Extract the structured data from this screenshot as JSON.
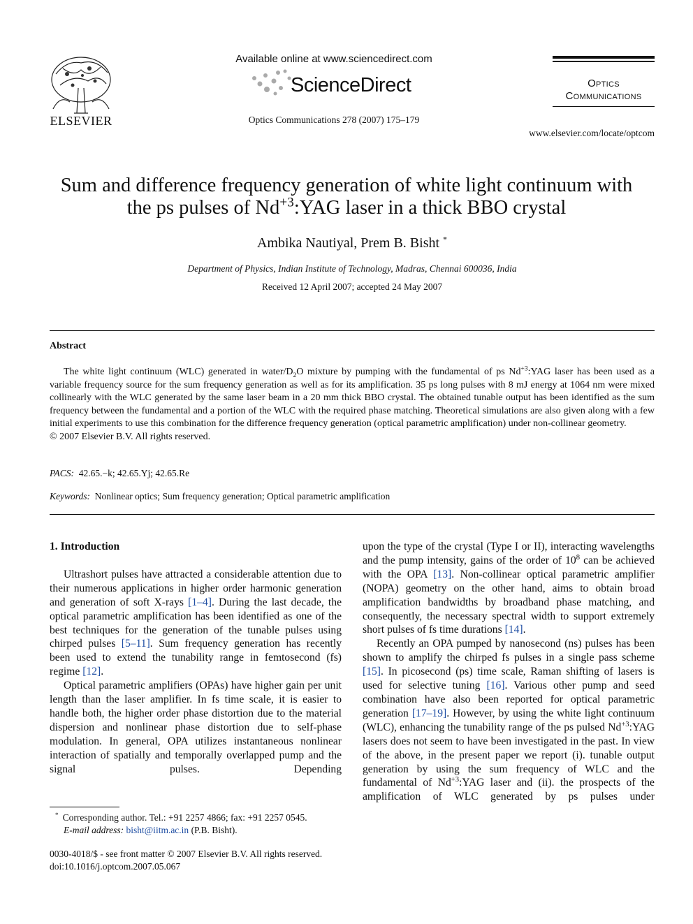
{
  "header": {
    "publisher": "ELSEVIER",
    "available": "Available online at www.sciencedirect.com",
    "brand": "ScienceDirect",
    "citation": "Optics Communications 278 (2007) 175–179",
    "journal": [
      "Optics",
      "Communications"
    ],
    "url": "www.elsevier.com/locate/optcom"
  },
  "title": [
    "Sum and difference frequency generation of white light continuum with the ps pulses of Nd",
    {
      "sup": "+3"
    },
    ":YAG laser in a thick BBO crystal"
  ],
  "authors": "Ambika Nautiyal, Prem B. Bisht",
  "author_mark": "*",
  "affiliation": "Department of Physics, Indian Institute of Technology, Madras, Chennai 600036, India",
  "received": "Received 12 April 2007; accepted 24 May 2007",
  "abstract": {
    "heading": "Abstract",
    "body": [
      "The white light continuum (WLC) generated in water/D",
      {
        "sub": "2"
      },
      "O mixture by pumping with the fundamental of ps Nd",
      {
        "sup": "+3"
      },
      ":YAG laser has been used as a variable frequency source for the sum frequency generation as well as for its amplification. 35 ps long pulses with 8 mJ energy at 1064 nm were mixed collinearly with the WLC generated by the same laser beam in a 20 mm thick BBO crystal. The obtained tunable output has been identified as the sum frequency between the fundamental and a portion of the WLC with the required phase matching. Theoretical simulations are also given along with a few initial experiments to use this combination for the difference frequency generation (optical parametric amplification) under non-collinear geometry."
    ],
    "copyright": "© 2007 Elsevier B.V. All rights reserved."
  },
  "pacs": {
    "label": "PACS:",
    "text": "42.65.−k; 42.65.Yj; 42.65.Re"
  },
  "keywords": {
    "label": "Keywords:",
    "text": "Nonlinear optics; Sum frequency generation; Optical parametric amplification"
  },
  "columns": [
    {
      "heading": "1. Introduction",
      "paragraphs": [
        [
          "Ultrashort pulses have attracted a considerable attention due to their numerous applications in higher order harmonic generation and generation of soft X-rays ",
          {
            "ref": "[1–4]"
          },
          ". During the last decade, the optical parametric amplification has been identified as one of the best techniques for the generation of the tunable pulses using chirped pulses ",
          {
            "ref": "[5–11]"
          },
          ". Sum frequency generation has recently been used to extend the tunability range in femtosecond (fs) regime ",
          {
            "ref": "[12]"
          },
          "."
        ],
        [
          "Optical parametric amplifiers (OPAs) have higher gain per unit length than the laser amplifier. In fs time scale, it is easier to handle both, the higher order phase distortion due to the material dispersion and nonlinear phase distortion due to self-phase modulation. In general, OPA utilizes instantaneous nonlinear interaction of spatially and temporally overlapped pump and the signal pulses. Depending"
        ]
      ]
    },
    {
      "paragraphs": [
        [
          "upon the type of the crystal (Type I or II), interacting wavelengths and the pump intensity, gains of the order of 10",
          {
            "sup": "8"
          },
          " can be achieved with the OPA ",
          {
            "ref": "[13]"
          },
          ". Non-collinear optical parametric amplifier (NOPA) geometry on the other hand, aims to obtain broad amplification bandwidths by broadband phase matching, and consequently, the necessary spectral width to support extremely short pulses of fs time durations ",
          {
            "ref": "[14]"
          },
          "."
        ],
        [
          "Recently an OPA pumped by nanosecond (ns) pulses has been shown to amplify the chirped fs pulses in a single pass scheme ",
          {
            "ref": "[15]"
          },
          ". In picosecond (ps) time scale, Raman shifting of lasers is used for selective tuning ",
          {
            "ref": "[16]"
          },
          ". Various other pump and seed combination have also been reported for optical parametric generation ",
          {
            "ref": "[17–19]"
          },
          ". However, by using the white light continuum (WLC), enhancing the tunability range of the ps pulsed Nd",
          {
            "sup": "+3"
          },
          ":YAG lasers does not seem to have been investigated in the past. In view of the above, in the present paper we report (i). tunable output generation by using the sum frequency of WLC and the fundamental of Nd",
          {
            "sup": "+3"
          },
          ":YAG laser and (ii). the prospects of the amplification of WLC generated by ps pulses under"
        ]
      ]
    }
  ],
  "footnote": {
    "mark": "*",
    "contact": "Corresponding author. Tel.: +91 2257 4866; fax: +91 2257 0545.",
    "email_label": "E-mail address:",
    "email": "bisht@iitm.ac.in",
    "email_owner": "(P.B. Bisht)."
  },
  "footer": [
    "0030-4018/$ - see front matter © 2007 Elsevier B.V. All rights reserved.",
    "doi:10.1016/j.optcom.2007.05.067"
  ]
}
